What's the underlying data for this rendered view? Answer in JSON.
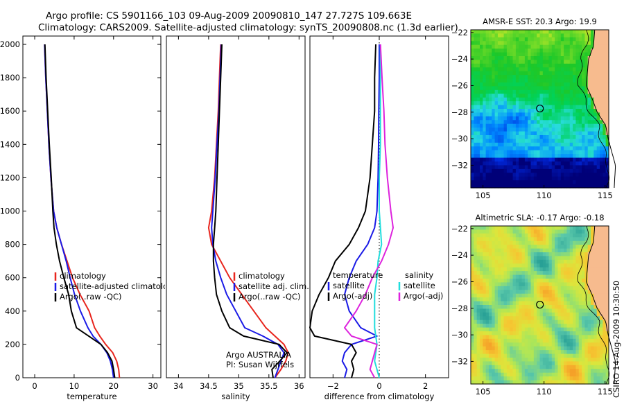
{
  "header": {
    "line1": "Argo profile: CS 5901166_103 09-Aug-2009 20090810_147 27.727S 109.663E",
    "line2": "Climatology: CARS2009. Satellite-adjusted climatology: synTS_20090808.nc (1.3d earlier)"
  },
  "side_label": "CSIRO 14-Aug-2009 10:30:50",
  "colors": {
    "climatology": "#e8251d",
    "satellite": "#1a1ae6",
    "argo": "#000000",
    "salinity_satellite": "#22dddd",
    "salinity_argo": "#dd22dd",
    "land": "#f7bb8e"
  },
  "chart_data": [
    {
      "type": "line",
      "id": "temperature",
      "xlabel": "temperature",
      "ylabel": "",
      "xlim": [
        -3,
        32
      ],
      "ylim": [
        2050,
        0
      ],
      "xticks": [
        0,
        10,
        20,
        30
      ],
      "yticks": [
        0,
        200,
        400,
        600,
        800,
        1000,
        1200,
        1400,
        1600,
        1800,
        2000
      ],
      "legend": {
        "position": "lower-right",
        "entries": [
          "climatology",
          "satellite-adjusted climatology",
          "Argo(..raw -QC)"
        ]
      },
      "series": [
        {
          "name": "climatology",
          "color": "#e8251d",
          "points": [
            [
              21.5,
              0
            ],
            [
              21.3,
              50
            ],
            [
              20.8,
              100
            ],
            [
              19.8,
              150
            ],
            [
              18.0,
              200
            ],
            [
              16.5,
              250
            ],
            [
              15.2,
              300
            ],
            [
              13.8,
              400
            ],
            [
              11.5,
              500
            ],
            [
              9.6,
              600
            ],
            [
              8.2,
              700
            ],
            [
              6.8,
              800
            ],
            [
              5.6,
              900
            ],
            [
              4.8,
              1000
            ],
            [
              4.1,
              1200
            ],
            [
              3.6,
              1400
            ],
            [
              3.2,
              1600
            ],
            [
              2.8,
              1800
            ],
            [
              2.5,
              2000
            ]
          ]
        },
        {
          "name": "satellite-adjusted climatology",
          "color": "#1a1ae6",
          "points": [
            [
              20.0,
              0
            ],
            [
              19.7,
              50
            ],
            [
              19.2,
              100
            ],
            [
              18.3,
              150
            ],
            [
              16.8,
              200
            ],
            [
              14.8,
              250
            ],
            [
              13.5,
              300
            ],
            [
              11.6,
              400
            ],
            [
              10.1,
              500
            ],
            [
              9.0,
              600
            ],
            [
              8.0,
              700
            ],
            [
              6.8,
              800
            ],
            [
              5.6,
              900
            ],
            [
              4.8,
              1000
            ],
            [
              4.1,
              1200
            ],
            [
              3.6,
              1400
            ],
            [
              3.2,
              1600
            ],
            [
              2.8,
              1800
            ],
            [
              2.5,
              2000
            ]
          ]
        },
        {
          "name": "Argo(..raw -QC)",
          "color": "#000000",
          "points": [
            [
              20.3,
              0
            ],
            [
              20.0,
              50
            ],
            [
              19.6,
              100
            ],
            [
              18.5,
              150
            ],
            [
              16.8,
              200
            ],
            [
              13.7,
              250
            ],
            [
              10.6,
              300
            ],
            [
              9.3,
              400
            ],
            [
              8.6,
              500
            ],
            [
              7.4,
              600
            ],
            [
              6.3,
              700
            ],
            [
              5.5,
              800
            ],
            [
              4.9,
              900
            ],
            [
              4.6,
              1000
            ],
            [
              4.2,
              1200
            ],
            [
              3.7,
              1400
            ],
            [
              3.3,
              1600
            ],
            [
              2.9,
              1800
            ],
            [
              2.6,
              2000
            ]
          ]
        }
      ]
    },
    {
      "type": "line",
      "id": "salinity",
      "xlabel": "salinity",
      "ylabel": "",
      "xlim": [
        33.8,
        36.1
      ],
      "ylim": [
        2050,
        0
      ],
      "xticks": [
        34,
        34.5,
        35,
        35.5,
        36
      ],
      "xticklabels": [
        "34",
        "34.5",
        "35",
        "35.5",
        "36"
      ],
      "legend": {
        "position": "lower-right",
        "entries": [
          "climatology",
          "satellite adj. clim.",
          "Argo(..raw -QC)"
        ]
      },
      "annotation": [
        "Argo AUSTRALIA",
        "PI: Susan Wijffels"
      ],
      "series": [
        {
          "name": "climatology",
          "color": "#e8251d",
          "points": [
            [
              35.6,
              0
            ],
            [
              35.7,
              50
            ],
            [
              35.78,
              100
            ],
            [
              35.82,
              150
            ],
            [
              35.75,
              200
            ],
            [
              35.6,
              250
            ],
            [
              35.45,
              300
            ],
            [
              35.25,
              400
            ],
            [
              35.05,
              500
            ],
            [
              34.85,
              600
            ],
            [
              34.7,
              700
            ],
            [
              34.55,
              800
            ],
            [
              34.5,
              900
            ],
            [
              34.55,
              1000
            ],
            [
              34.6,
              1200
            ],
            [
              34.63,
              1400
            ],
            [
              34.66,
              1600
            ],
            [
              34.68,
              1800
            ],
            [
              34.7,
              2000
            ]
          ]
        },
        {
          "name": "satellite adj. clim.",
          "color": "#1a1ae6",
          "points": [
            [
              35.6,
              0
            ],
            [
              35.65,
              50
            ],
            [
              35.7,
              100
            ],
            [
              35.75,
              150
            ],
            [
              35.65,
              200
            ],
            [
              35.4,
              250
            ],
            [
              35.1,
              300
            ],
            [
              34.95,
              400
            ],
            [
              34.8,
              500
            ],
            [
              34.7,
              600
            ],
            [
              34.62,
              700
            ],
            [
              34.57,
              800
            ],
            [
              34.55,
              900
            ],
            [
              34.57,
              1000
            ],
            [
              34.61,
              1200
            ],
            [
              34.64,
              1400
            ],
            [
              34.67,
              1600
            ],
            [
              34.69,
              1800
            ],
            [
              34.71,
              2000
            ]
          ]
        },
        {
          "name": "Argo(..raw -QC)",
          "color": "#000000",
          "points": [
            [
              35.57,
              0
            ],
            [
              35.55,
              50
            ],
            [
              35.68,
              100
            ],
            [
              35.8,
              150
            ],
            [
              35.67,
              200
            ],
            [
              35.08,
              250
            ],
            [
              34.85,
              300
            ],
            [
              34.72,
              400
            ],
            [
              34.63,
              500
            ],
            [
              34.6,
              600
            ],
            [
              34.58,
              700
            ],
            [
              34.58,
              800
            ],
            [
              34.6,
              900
            ],
            [
              34.62,
              1000
            ],
            [
              34.64,
              1200
            ],
            [
              34.66,
              1400
            ],
            [
              34.68,
              1600
            ],
            [
              34.7,
              1800
            ],
            [
              34.72,
              2000
            ]
          ]
        }
      ]
    },
    {
      "type": "line",
      "id": "difference",
      "xlabel": "difference from climatology",
      "ylabel": "",
      "xlim": [
        -3,
        3
      ],
      "ylim": [
        2050,
        0
      ],
      "xticks": [
        -2,
        0,
        2
      ],
      "legend": {
        "position": "lower-right",
        "groups": [
          [
            "temperature",
            "satellite",
            "Argo(-adj)"
          ],
          [
            "salinity",
            "satellite",
            "Argo(-adj)"
          ]
        ]
      },
      "series": [
        {
          "name": "temperature satellite",
          "color": "#1a1ae6",
          "points": [
            [
              -1.5,
              0
            ],
            [
              -1.4,
              50
            ],
            [
              -1.6,
              100
            ],
            [
              -1.5,
              150
            ],
            [
              -1.2,
              200
            ],
            [
              -0.1,
              250
            ],
            [
              -0.8,
              300
            ],
            [
              -1.3,
              400
            ],
            [
              -1.5,
              500
            ],
            [
              -1.3,
              600
            ],
            [
              -1.0,
              700
            ],
            [
              -0.5,
              800
            ],
            [
              -0.2,
              900
            ],
            [
              -0.1,
              1000
            ],
            [
              -0.05,
              1200
            ],
            [
              -0.03,
              1400
            ],
            [
              -0.02,
              1600
            ],
            [
              0,
              1800
            ],
            [
              0,
              2000
            ]
          ]
        },
        {
          "name": "temperature Argo(-adj)",
          "color": "#000000",
          "points": [
            [
              -1.2,
              0
            ],
            [
              -1.1,
              50
            ],
            [
              -1.2,
              100
            ],
            [
              -1.0,
              150
            ],
            [
              -1.2,
              200
            ],
            [
              -2.8,
              250
            ],
            [
              -3.0,
              300
            ],
            [
              -2.9,
              400
            ],
            [
              -2.6,
              500
            ],
            [
              -2.2,
              600
            ],
            [
              -1.9,
              700
            ],
            [
              -1.3,
              800
            ],
            [
              -0.9,
              900
            ],
            [
              -0.6,
              1000
            ],
            [
              -0.4,
              1200
            ],
            [
              -0.3,
              1400
            ],
            [
              -0.2,
              1600
            ],
            [
              -0.2,
              1800
            ],
            [
              -0.15,
              2000
            ]
          ]
        },
        {
          "name": "salinity satellite",
          "color": "#22dddd",
          "points": [
            [
              0,
              0
            ],
            [
              -0.1,
              50
            ],
            [
              -0.2,
              100
            ],
            [
              -0.15,
              150
            ],
            [
              -0.1,
              200
            ],
            [
              -0.15,
              250
            ],
            [
              -0.2,
              300
            ],
            [
              -0.2,
              400
            ],
            [
              -0.2,
              500
            ],
            [
              -0.1,
              600
            ],
            [
              -0.05,
              700
            ],
            [
              0.1,
              800
            ],
            [
              0.05,
              900
            ],
            [
              0,
              1000
            ],
            [
              0,
              1200
            ],
            [
              0.05,
              1400
            ],
            [
              0.05,
              1600
            ],
            [
              0.05,
              1800
            ],
            [
              0.05,
              2000
            ]
          ]
        },
        {
          "name": "salinity Argo(-adj)",
          "color": "#dd22dd",
          "points": [
            [
              -0.2,
              0
            ],
            [
              -0.4,
              50
            ],
            [
              -0.3,
              100
            ],
            [
              -0.2,
              150
            ],
            [
              -0.1,
              200
            ],
            [
              -1.2,
              250
            ],
            [
              -1.5,
              300
            ],
            [
              -1.0,
              400
            ],
            [
              -0.6,
              500
            ],
            [
              -0.3,
              600
            ],
            [
              0.1,
              700
            ],
            [
              0.4,
              800
            ],
            [
              0.6,
              900
            ],
            [
              0.5,
              1000
            ],
            [
              0.35,
              1200
            ],
            [
              0.25,
              1400
            ],
            [
              0.2,
              1600
            ],
            [
              0.12,
              1800
            ],
            [
              0.05,
              2000
            ]
          ]
        }
      ]
    },
    {
      "type": "heatmap",
      "id": "sst_map",
      "title": "AMSR-E SST: 20.3 Argo: 19.9",
      "xlim": [
        104,
        115.3
      ],
      "ylim": [
        -33.7,
        -21.8
      ],
      "xticks": [
        105,
        110,
        115
      ],
      "yticks": [
        -22,
        -24,
        -26,
        -28,
        -30,
        -32
      ],
      "argo_position": [
        109.663,
        -27.727
      ]
    },
    {
      "type": "heatmap",
      "id": "sla_map",
      "title": "Altimetric SLA: -0.17 Argo: -0.18",
      "xlim": [
        104,
        115.3
      ],
      "ylim": [
        -33.7,
        -21.8
      ],
      "xticks": [
        105,
        110,
        115
      ],
      "yticks": [
        -22,
        -24,
        -26,
        -28,
        -30,
        -32
      ],
      "argo_position": [
        109.663,
        -27.727
      ]
    }
  ]
}
